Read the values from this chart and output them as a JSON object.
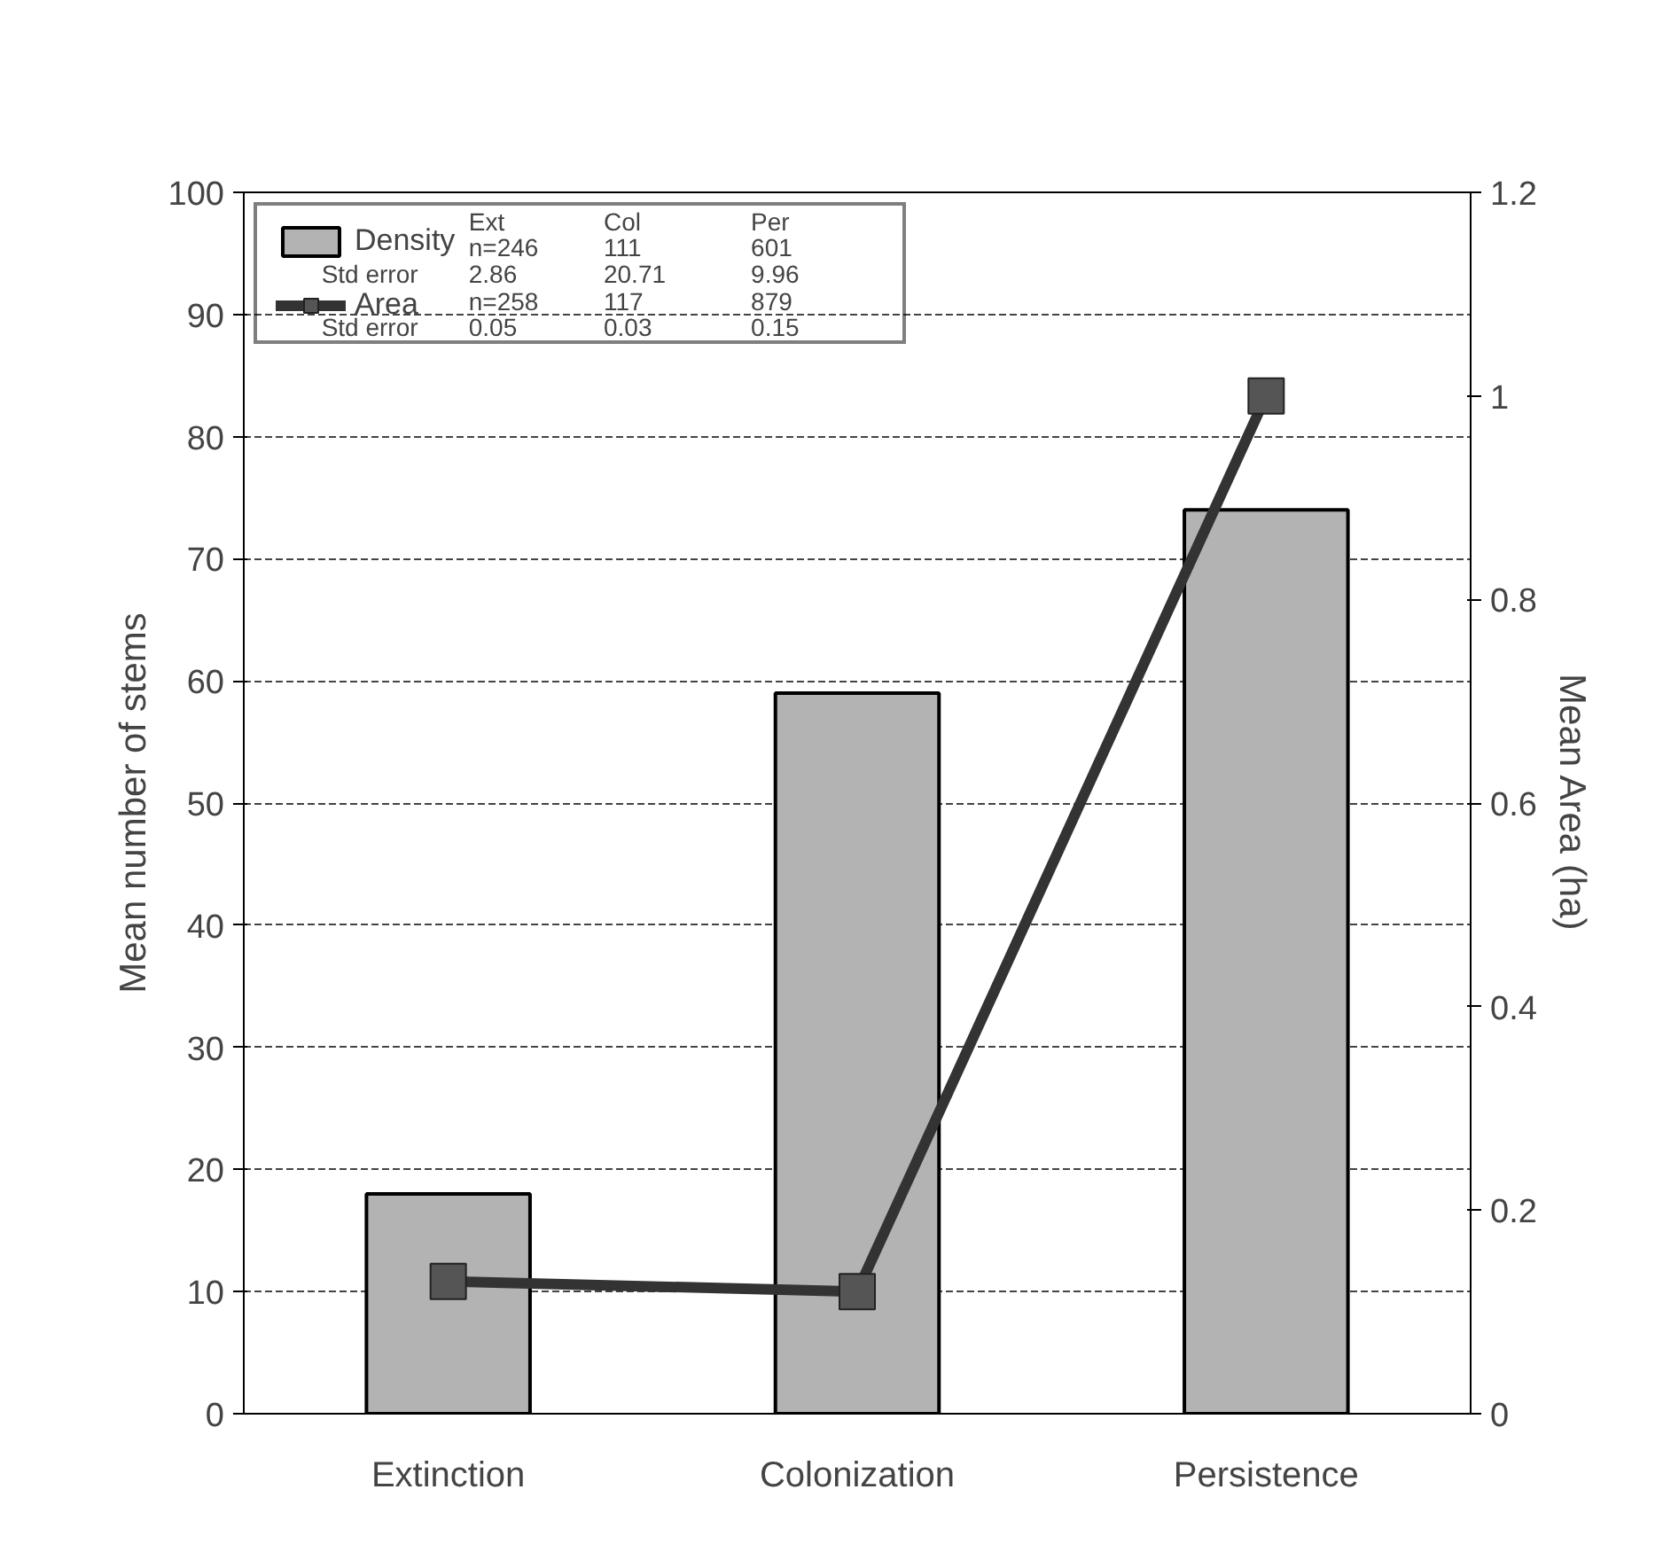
{
  "chart_data": {
    "type": "bar",
    "categories": [
      "Extinction",
      "Colonization",
      "Persistence"
    ],
    "ylabel": "Mean number of stems",
    "y2label": "Mean Area (ha)",
    "ylim": [
      0,
      100
    ],
    "yticks": [
      0,
      10,
      20,
      30,
      40,
      50,
      60,
      70,
      80,
      90,
      100
    ],
    "y2lim": [
      0,
      1.2
    ],
    "y2ticks": [
      0,
      0.2,
      0.4,
      0.6,
      0.8,
      1,
      1.2
    ],
    "series": [
      {
        "name": "Density",
        "color": "#b3b3b3",
        "values": [
          18,
          59,
          74
        ]
      },
      {
        "name": "Area",
        "type": "line",
        "axis": "y2",
        "color": "#333333",
        "marker": "square",
        "values": [
          0.13,
          0.12,
          1.0
        ]
      }
    ],
    "annotations": [
      "Ext",
      "Col",
      "Per",
      "n=246",
      "111",
      "601",
      "Std error",
      "2.86",
      "20.71",
      "9.96",
      "n=258",
      "117",
      "879",
      "Std error",
      "0.05",
      "0.03",
      "0.15"
    ],
    "grid": "y",
    "legend": "top left"
  }
}
